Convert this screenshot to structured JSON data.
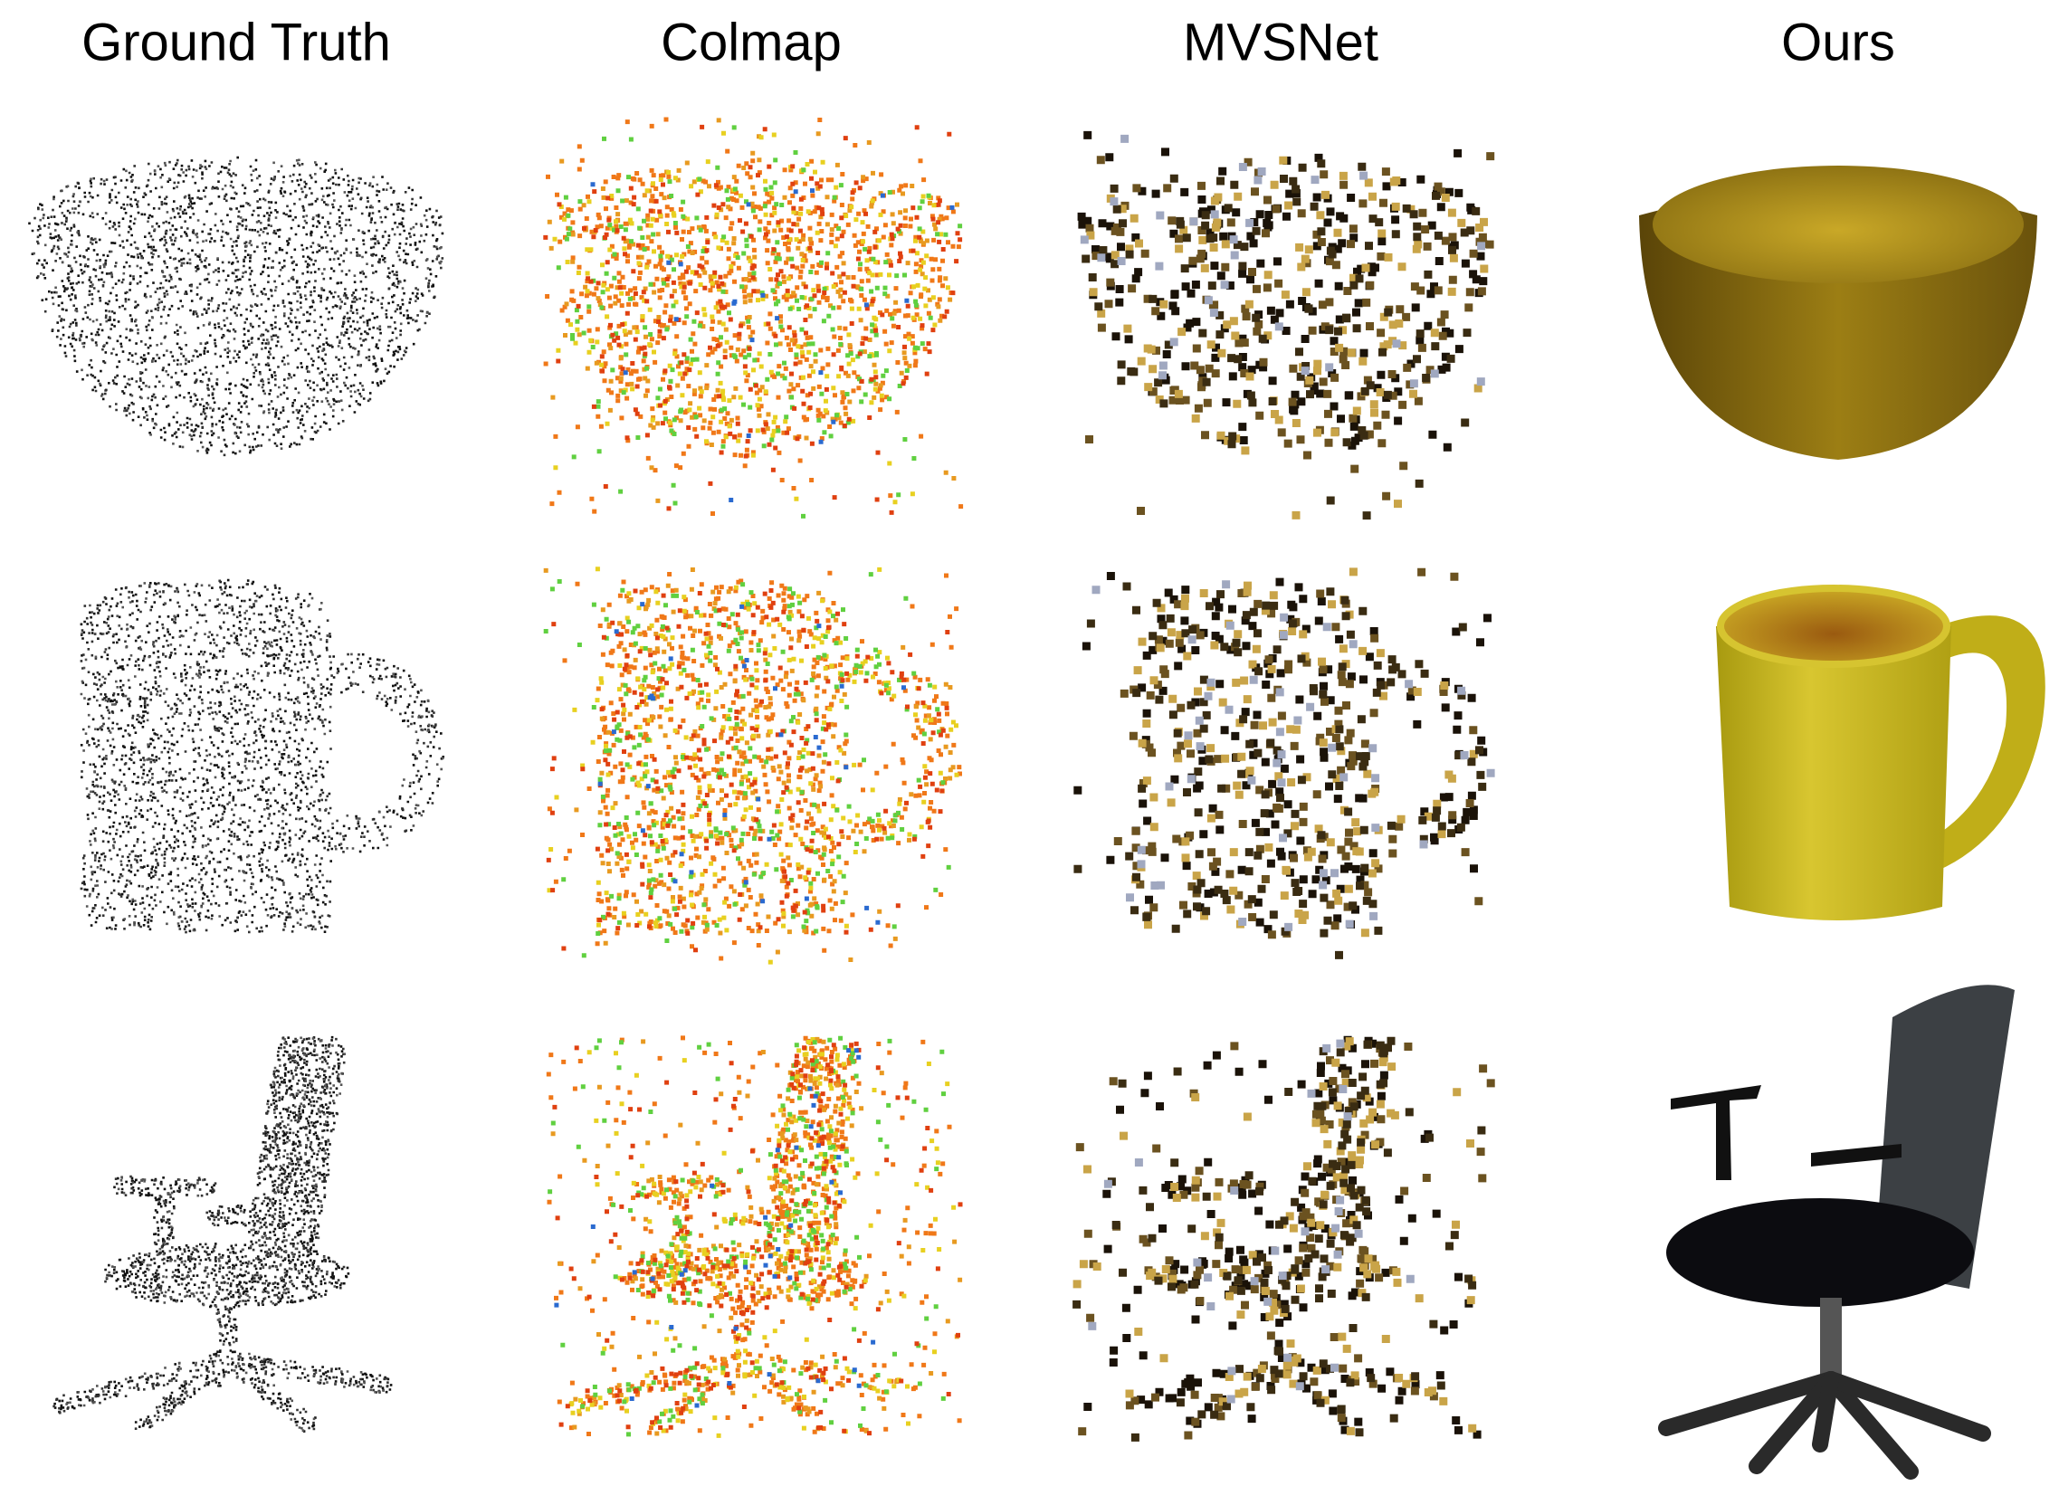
{
  "columns": [
    "Ground Truth",
    "Colmap",
    "MVSNet",
    "Ours"
  ]
}
